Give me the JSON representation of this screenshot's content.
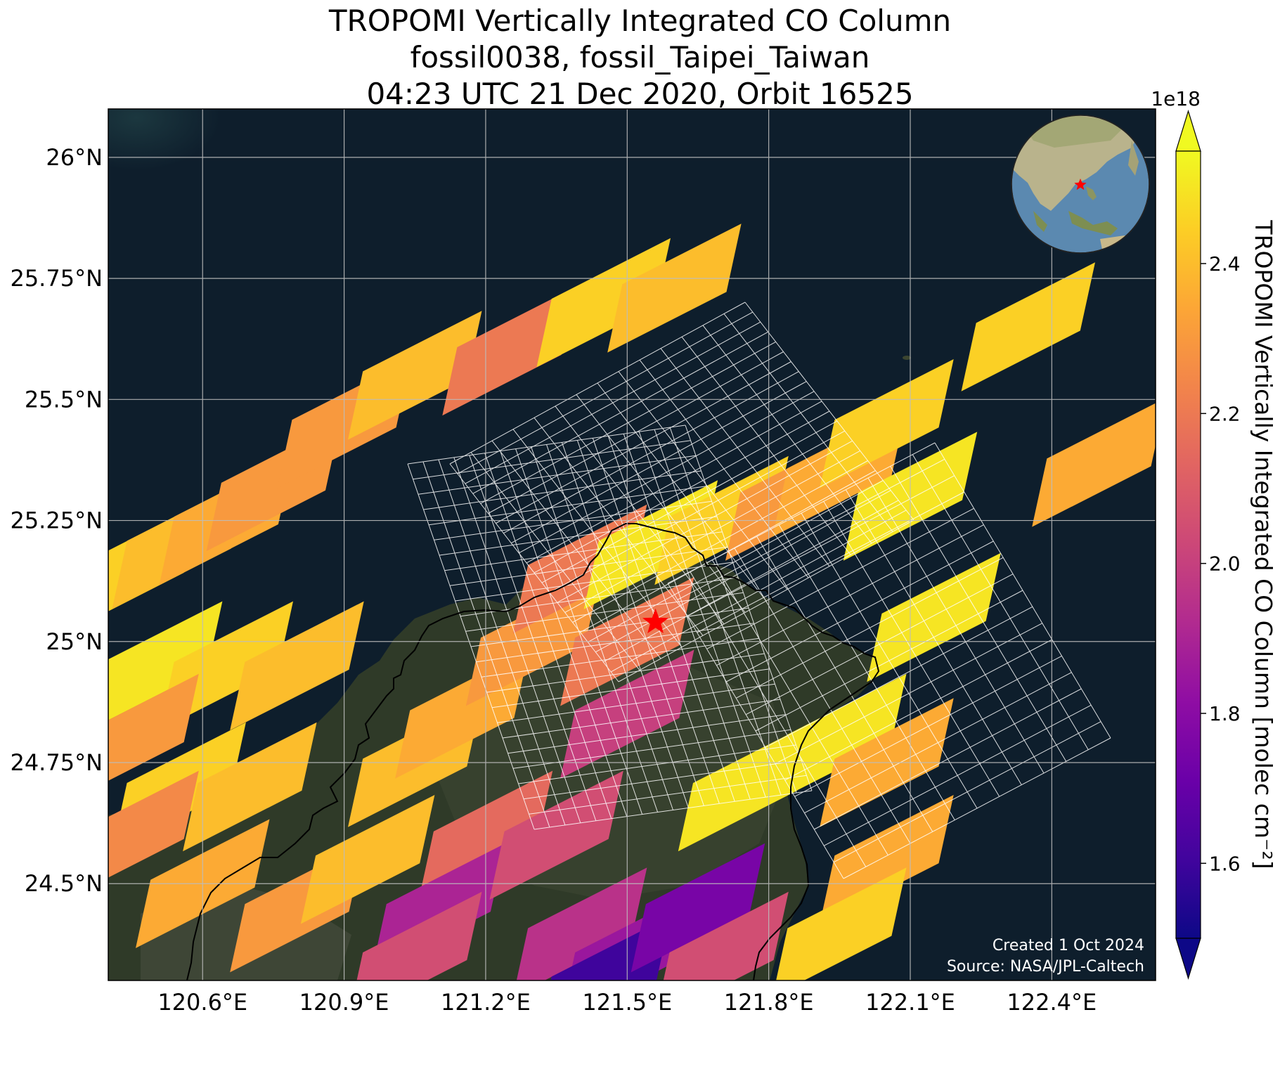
{
  "title": {
    "line1": "TROPOMI Vertically Integrated CO Column",
    "line2": "fossil0038, fossil_Taipei_Taiwan",
    "line3": "04:23 UTC 21 Dec 2020, Orbit 16525"
  },
  "colorbar": {
    "label": "TROPOMI Vertically Integrated CO Column [molec cm⁻²]",
    "exponent": "1e18",
    "range": [
      1.5,
      2.55
    ],
    "ticks": [
      "1.6",
      "1.8",
      "2.0",
      "2.2",
      "2.4"
    ],
    "colormap": "plasma",
    "extend": "both"
  },
  "map": {
    "lon_range": [
      120.4,
      122.62
    ],
    "lat_range": [
      24.3,
      26.1
    ],
    "lon_ticks": [
      "120.6°E",
      "120.9°E",
      "121.2°E",
      "121.5°E",
      "121.8°E",
      "122.1°E",
      "122.4°E"
    ],
    "lat_ticks": [
      "24.5°N",
      "24.75°N",
      "25°N",
      "25.25°N",
      "25.5°N",
      "25.75°N",
      "26°N"
    ],
    "gridlines": true,
    "site_marker": "red-star",
    "inset": "globe centered on East Asia with red star at Taiwan",
    "ocean_color": "#0e1e2c"
  },
  "credits": {
    "created": "Created 1 Oct 2024",
    "source": "Source: NASA/JPL-Caltech"
  },
  "chart_data": {
    "type": "heatmap",
    "value_unit_multiplier": "1e18",
    "pixels_units": "lon deg E, lat deg N, CO column x1e18 molec/cm2",
    "swath_pixels": [
      {
        "lon": 120.45,
        "lat": 25.15,
        "value": 2.45
      },
      {
        "lon": 120.55,
        "lat": 25.2,
        "value": 2.4
      },
      {
        "lon": 120.65,
        "lat": 25.25,
        "value": 2.35
      },
      {
        "lon": 120.75,
        "lat": 25.32,
        "value": 2.3
      },
      {
        "lon": 120.9,
        "lat": 25.45,
        "value": 2.3
      },
      {
        "lon": 121.05,
        "lat": 25.55,
        "value": 2.4
      },
      {
        "lon": 121.25,
        "lat": 25.6,
        "value": 2.2
      },
      {
        "lon": 121.45,
        "lat": 25.7,
        "value": 2.45
      },
      {
        "lon": 121.6,
        "lat": 25.73,
        "value": 2.4
      },
      {
        "lon": 120.5,
        "lat": 24.95,
        "value": 2.5
      },
      {
        "lon": 120.65,
        "lat": 24.95,
        "value": 2.45
      },
      {
        "lon": 120.8,
        "lat": 24.95,
        "value": 2.4
      },
      {
        "lon": 120.45,
        "lat": 24.8,
        "value": 2.3
      },
      {
        "lon": 120.55,
        "lat": 24.7,
        "value": 2.45
      },
      {
        "lon": 120.7,
        "lat": 24.7,
        "value": 2.4
      },
      {
        "lon": 120.45,
        "lat": 24.6,
        "value": 2.25
      },
      {
        "lon": 120.6,
        "lat": 24.5,
        "value": 2.35
      },
      {
        "lon": 120.8,
        "lat": 24.45,
        "value": 2.3
      },
      {
        "lon": 120.95,
        "lat": 24.55,
        "value": 2.4
      },
      {
        "lon": 121.05,
        "lat": 24.75,
        "value": 2.4
      },
      {
        "lon": 121.15,
        "lat": 24.85,
        "value": 2.35
      },
      {
        "lon": 121.2,
        "lat": 24.6,
        "value": 2.15
      },
      {
        "lon": 121.1,
        "lat": 24.45,
        "value": 1.9
      },
      {
        "lon": 121.05,
        "lat": 24.35,
        "value": 2.05
      },
      {
        "lon": 121.35,
        "lat": 24.6,
        "value": 2.05
      },
      {
        "lon": 121.3,
        "lat": 25.0,
        "value": 2.3
      },
      {
        "lon": 121.4,
        "lat": 25.15,
        "value": 2.2
      },
      {
        "lon": 121.5,
        "lat": 25.0,
        "value": 2.2
      },
      {
        "lon": 121.5,
        "lat": 24.85,
        "value": 2.0
      },
      {
        "lon": 121.55,
        "lat": 25.2,
        "value": 2.5
      },
      {
        "lon": 121.7,
        "lat": 25.25,
        "value": 2.45
      },
      {
        "lon": 121.85,
        "lat": 25.3,
        "value": 2.3
      },
      {
        "lon": 121.95,
        "lat": 25.35,
        "value": 2.35
      },
      {
        "lon": 121.4,
        "lat": 24.4,
        "value": 1.95
      },
      {
        "lon": 121.5,
        "lat": 24.35,
        "value": 1.85
      },
      {
        "lon": 121.45,
        "lat": 24.3,
        "value": 1.6
      },
      {
        "lon": 121.65,
        "lat": 24.45,
        "value": 1.75
      },
      {
        "lon": 121.7,
        "lat": 24.35,
        "value": 2.05
      },
      {
        "lon": 121.75,
        "lat": 24.7,
        "value": 2.5
      },
      {
        "lon": 121.95,
        "lat": 24.8,
        "value": 2.5
      },
      {
        "lon": 122.05,
        "lat": 24.75,
        "value": 2.35
      },
      {
        "lon": 122.05,
        "lat": 24.55,
        "value": 2.35
      },
      {
        "lon": 121.95,
        "lat": 24.4,
        "value": 2.45
      },
      {
        "lon": 122.05,
        "lat": 25.45,
        "value": 2.45
      },
      {
        "lon": 122.1,
        "lat": 25.3,
        "value": 2.5
      },
      {
        "lon": 122.15,
        "lat": 25.05,
        "value": 2.5
      },
      {
        "lon": 122.35,
        "lat": 25.65,
        "value": 2.45
      },
      {
        "lon": 122.5,
        "lat": 25.37,
        "value": 2.35
      }
    ],
    "site": {
      "name": "fossil_Taipei_Taiwan",
      "lon": 121.56,
      "lat": 25.04
    }
  }
}
